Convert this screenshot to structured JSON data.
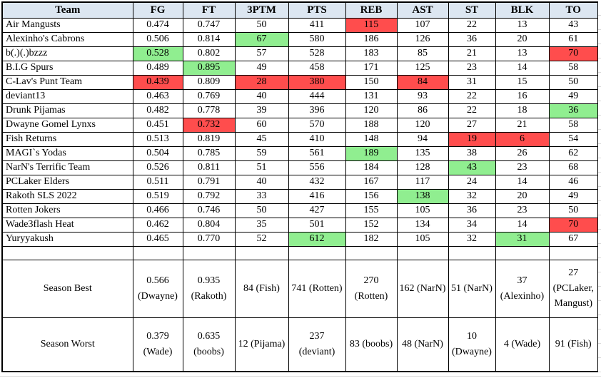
{
  "table": {
    "columns": [
      "Team",
      "FG",
      "FT",
      "3PTM",
      "PTS",
      "REB",
      "AST",
      "ST",
      "BLK",
      "TO"
    ],
    "rows": [
      {
        "team": "Air Mangusts",
        "cells": [
          {
            "v": "0.474"
          },
          {
            "v": "0.747"
          },
          {
            "v": "50"
          },
          {
            "v": "411"
          },
          {
            "v": "115",
            "hl": "red"
          },
          {
            "v": "107"
          },
          {
            "v": "22"
          },
          {
            "v": "13"
          },
          {
            "v": "43"
          }
        ]
      },
      {
        "team": "Alexinho's Cabrons",
        "cells": [
          {
            "v": "0.506"
          },
          {
            "v": "0.814"
          },
          {
            "v": "67",
            "hl": "green"
          },
          {
            "v": "580"
          },
          {
            "v": "186"
          },
          {
            "v": "126"
          },
          {
            "v": "36"
          },
          {
            "v": "20"
          },
          {
            "v": "61"
          }
        ]
      },
      {
        "team": "b(.)(.)bzzz",
        "cells": [
          {
            "v": "0.528",
            "hl": "green"
          },
          {
            "v": "0.802"
          },
          {
            "v": "57"
          },
          {
            "v": "528"
          },
          {
            "v": "183"
          },
          {
            "v": "85"
          },
          {
            "v": "21"
          },
          {
            "v": "13"
          },
          {
            "v": "70",
            "hl": "red"
          }
        ]
      },
      {
        "team": "B.I.G Spurs",
        "cells": [
          {
            "v": "0.489"
          },
          {
            "v": "0.895",
            "hl": "green"
          },
          {
            "v": "49"
          },
          {
            "v": "458"
          },
          {
            "v": "171"
          },
          {
            "v": "125"
          },
          {
            "v": "23"
          },
          {
            "v": "14"
          },
          {
            "v": "58"
          }
        ]
      },
      {
        "team": "C-Lav's Punt Team",
        "cells": [
          {
            "v": "0.439",
            "hl": "red"
          },
          {
            "v": "0.809"
          },
          {
            "v": "28",
            "hl": "red"
          },
          {
            "v": "380",
            "hl": "red"
          },
          {
            "v": "150"
          },
          {
            "v": "84",
            "hl": "red"
          },
          {
            "v": "31"
          },
          {
            "v": "15"
          },
          {
            "v": "50"
          }
        ]
      },
      {
        "team": "deviant13",
        "cells": [
          {
            "v": "0.463"
          },
          {
            "v": "0.769"
          },
          {
            "v": "40"
          },
          {
            "v": "444"
          },
          {
            "v": "131"
          },
          {
            "v": "93"
          },
          {
            "v": "22"
          },
          {
            "v": "16"
          },
          {
            "v": "49"
          }
        ]
      },
      {
        "team": "Drunk Pijamas",
        "cells": [
          {
            "v": "0.482"
          },
          {
            "v": "0.778"
          },
          {
            "v": "39"
          },
          {
            "v": "396"
          },
          {
            "v": "120"
          },
          {
            "v": "86"
          },
          {
            "v": "22"
          },
          {
            "v": "18"
          },
          {
            "v": "36",
            "hl": "green"
          }
        ]
      },
      {
        "team": "Dwayne Gomel Lynxs",
        "cells": [
          {
            "v": "0.451"
          },
          {
            "v": "0.732",
            "hl": "red"
          },
          {
            "v": "60"
          },
          {
            "v": "570"
          },
          {
            "v": "188"
          },
          {
            "v": "120"
          },
          {
            "v": "27"
          },
          {
            "v": "21"
          },
          {
            "v": "58"
          }
        ]
      },
      {
        "team": "Fish Returns",
        "cells": [
          {
            "v": "0.513"
          },
          {
            "v": "0.819"
          },
          {
            "v": "45"
          },
          {
            "v": "410"
          },
          {
            "v": "148"
          },
          {
            "v": "94"
          },
          {
            "v": "19",
            "hl": "red"
          },
          {
            "v": "6",
            "hl": "red"
          },
          {
            "v": "54"
          }
        ]
      },
      {
        "team": "MAGI`s Yodas",
        "cells": [
          {
            "v": "0.504"
          },
          {
            "v": "0.785"
          },
          {
            "v": "59"
          },
          {
            "v": "561"
          },
          {
            "v": "189",
            "hl": "green"
          },
          {
            "v": "135"
          },
          {
            "v": "38"
          },
          {
            "v": "26"
          },
          {
            "v": "62"
          }
        ]
      },
      {
        "team": "NarN's Terrific Team",
        "cells": [
          {
            "v": "0.526"
          },
          {
            "v": "0.811"
          },
          {
            "v": "51"
          },
          {
            "v": "556"
          },
          {
            "v": "184"
          },
          {
            "v": "128"
          },
          {
            "v": "43",
            "hl": "green"
          },
          {
            "v": "23"
          },
          {
            "v": "68"
          }
        ]
      },
      {
        "team": "PCLaker Elders",
        "cells": [
          {
            "v": "0.511"
          },
          {
            "v": "0.791"
          },
          {
            "v": "40"
          },
          {
            "v": "432"
          },
          {
            "v": "167"
          },
          {
            "v": "117"
          },
          {
            "v": "24"
          },
          {
            "v": "14"
          },
          {
            "v": "46"
          }
        ]
      },
      {
        "team": "Rakoth SLS 2022",
        "cells": [
          {
            "v": "0.519"
          },
          {
            "v": "0.792"
          },
          {
            "v": "33"
          },
          {
            "v": "416"
          },
          {
            "v": "156"
          },
          {
            "v": "138",
            "hl": "green"
          },
          {
            "v": "32"
          },
          {
            "v": "20"
          },
          {
            "v": "49"
          }
        ]
      },
      {
        "team": "Rotten Jokers",
        "cells": [
          {
            "v": "0.466"
          },
          {
            "v": "0.746"
          },
          {
            "v": "50"
          },
          {
            "v": "427"
          },
          {
            "v": "155"
          },
          {
            "v": "105"
          },
          {
            "v": "36"
          },
          {
            "v": "23"
          },
          {
            "v": "50"
          }
        ]
      },
      {
        "team": "Wade3flash Heat",
        "cells": [
          {
            "v": "0.462"
          },
          {
            "v": "0.804"
          },
          {
            "v": "35"
          },
          {
            "v": "501"
          },
          {
            "v": "152"
          },
          {
            "v": "134"
          },
          {
            "v": "34"
          },
          {
            "v": "14"
          },
          {
            "v": "70",
            "hl": "red"
          }
        ]
      },
      {
        "team": "Yuryyakush",
        "cells": [
          {
            "v": "0.465"
          },
          {
            "v": "0.770"
          },
          {
            "v": "52"
          },
          {
            "v": "612",
            "hl": "green"
          },
          {
            "v": "182"
          },
          {
            "v": "105"
          },
          {
            "v": "32"
          },
          {
            "v": "31",
            "hl": "green"
          },
          {
            "v": "67"
          }
        ]
      }
    ],
    "summary": [
      {
        "label": "Season Best",
        "cells": [
          "0.566 (Dwayne)",
          "0.935 (Rakoth)",
          "84 (Fish)",
          "741 (Rotten)",
          "270 (Rotten)",
          "162 (NarN)",
          "51 (NarN)",
          "37 (Alexinho)",
          "27 (PCLaker, Mangust)"
        ]
      },
      {
        "label": "Season Worst",
        "cells": [
          "0.379 (Wade)",
          "0.635 (boobs)",
          "12 (Pijama)",
          "237 (deviant)",
          "83 (boobs)",
          "48 (NarN)",
          "10 (Dwayne)",
          "4 (Wade)",
          "91 (Fish)"
        ]
      }
    ]
  },
  "colors": {
    "header_bg": "#DCE6F1",
    "highlight_red": "#FF4D4D",
    "highlight_green": "#90EE90",
    "border": "#000000",
    "gridline": "#D9D9D9"
  }
}
